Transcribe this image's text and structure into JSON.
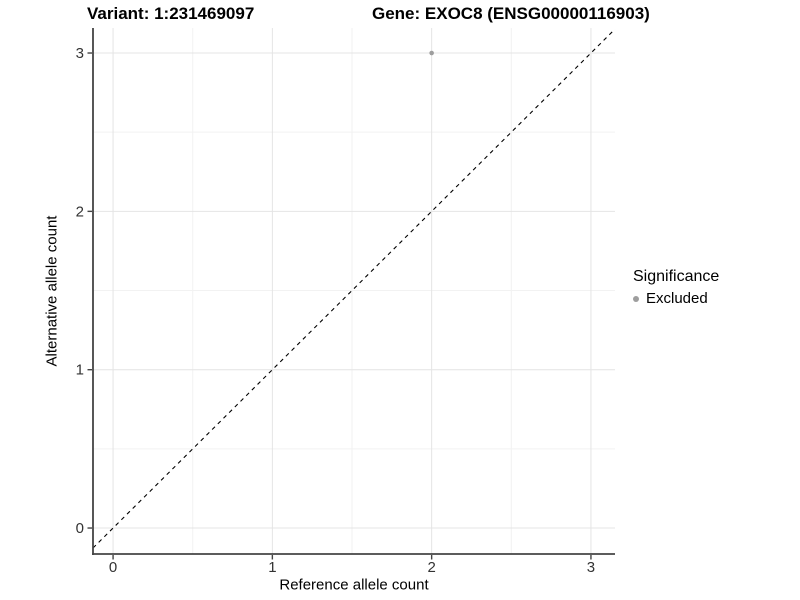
{
  "chart_data": {
    "type": "scatter",
    "title_left": "Variant: 1:231469097",
    "title_right": "Gene: EXOC8 (ENSG00000116903)",
    "xlabel": "Reference allele count",
    "ylabel": "Alternative allele count",
    "x_ticks": [
      0,
      1,
      2,
      3
    ],
    "y_ticks": [
      0,
      1,
      2,
      3
    ],
    "x_minor_ticks": [
      0.5,
      1.5,
      2.5
    ],
    "y_minor_ticks": [
      0.5,
      1.5,
      2.5
    ],
    "xlim": [
      -0.126,
      3.151
    ],
    "ylim": [
      -0.164,
      3.158
    ],
    "grid": true,
    "reference_line": {
      "slope": 1,
      "intercept": 0,
      "style": "dashed",
      "color": "#000000"
    },
    "series": [
      {
        "name": "Excluded",
        "color": "#9e9e9e",
        "points": [
          {
            "x": 2,
            "y": 3
          }
        ]
      }
    ],
    "legend": {
      "title": "Significance",
      "position": "right",
      "items": [
        {
          "label": "Excluded",
          "color": "#9e9e9e"
        }
      ]
    }
  },
  "colors": {
    "grid_major": "#e4e4e4",
    "grid_minor": "#f2f2f2",
    "axis_line": "#444444",
    "tick_label": "#333333",
    "point": "#9e9e9e",
    "reference_line": "#000000"
  }
}
